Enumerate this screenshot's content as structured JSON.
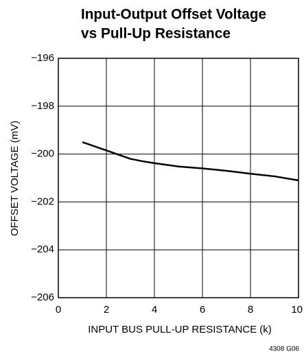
{
  "chart_data": {
    "type": "line",
    "title": [
      "Input-Output Offset Voltage",
      "vs Pull-Up Resistance"
    ],
    "xlabel": "INPUT BUS PULL-UP RESISTANCE (k)",
    "ylabel": "OFFSET VOLTAGE (mV)",
    "annotation": "4308 G06",
    "x": [
      1,
      2,
      3,
      3.5,
      4,
      5,
      6,
      7,
      8,
      9,
      10
    ],
    "series": [
      {
        "color": "#000000",
        "values": [
          -199.5,
          -199.85,
          -200.2,
          -200.3,
          -200.38,
          -200.52,
          -200.6,
          -200.7,
          -200.82,
          -200.93,
          -201.1
        ]
      }
    ],
    "xlim": [
      0,
      10
    ],
    "xticks": [
      0,
      2,
      4,
      6,
      8,
      10
    ],
    "ylim": [
      -206,
      -196
    ],
    "yticks": [
      {
        "value": -206,
        "label": "−206"
      },
      {
        "value": -204,
        "label": "−204"
      },
      {
        "value": -202,
        "label": "−202"
      },
      {
        "value": -200,
        "label": "−200"
      },
      {
        "value": -198,
        "label": "−198"
      },
      {
        "value": -196,
        "label": "−196"
      }
    ],
    "grid": true
  }
}
